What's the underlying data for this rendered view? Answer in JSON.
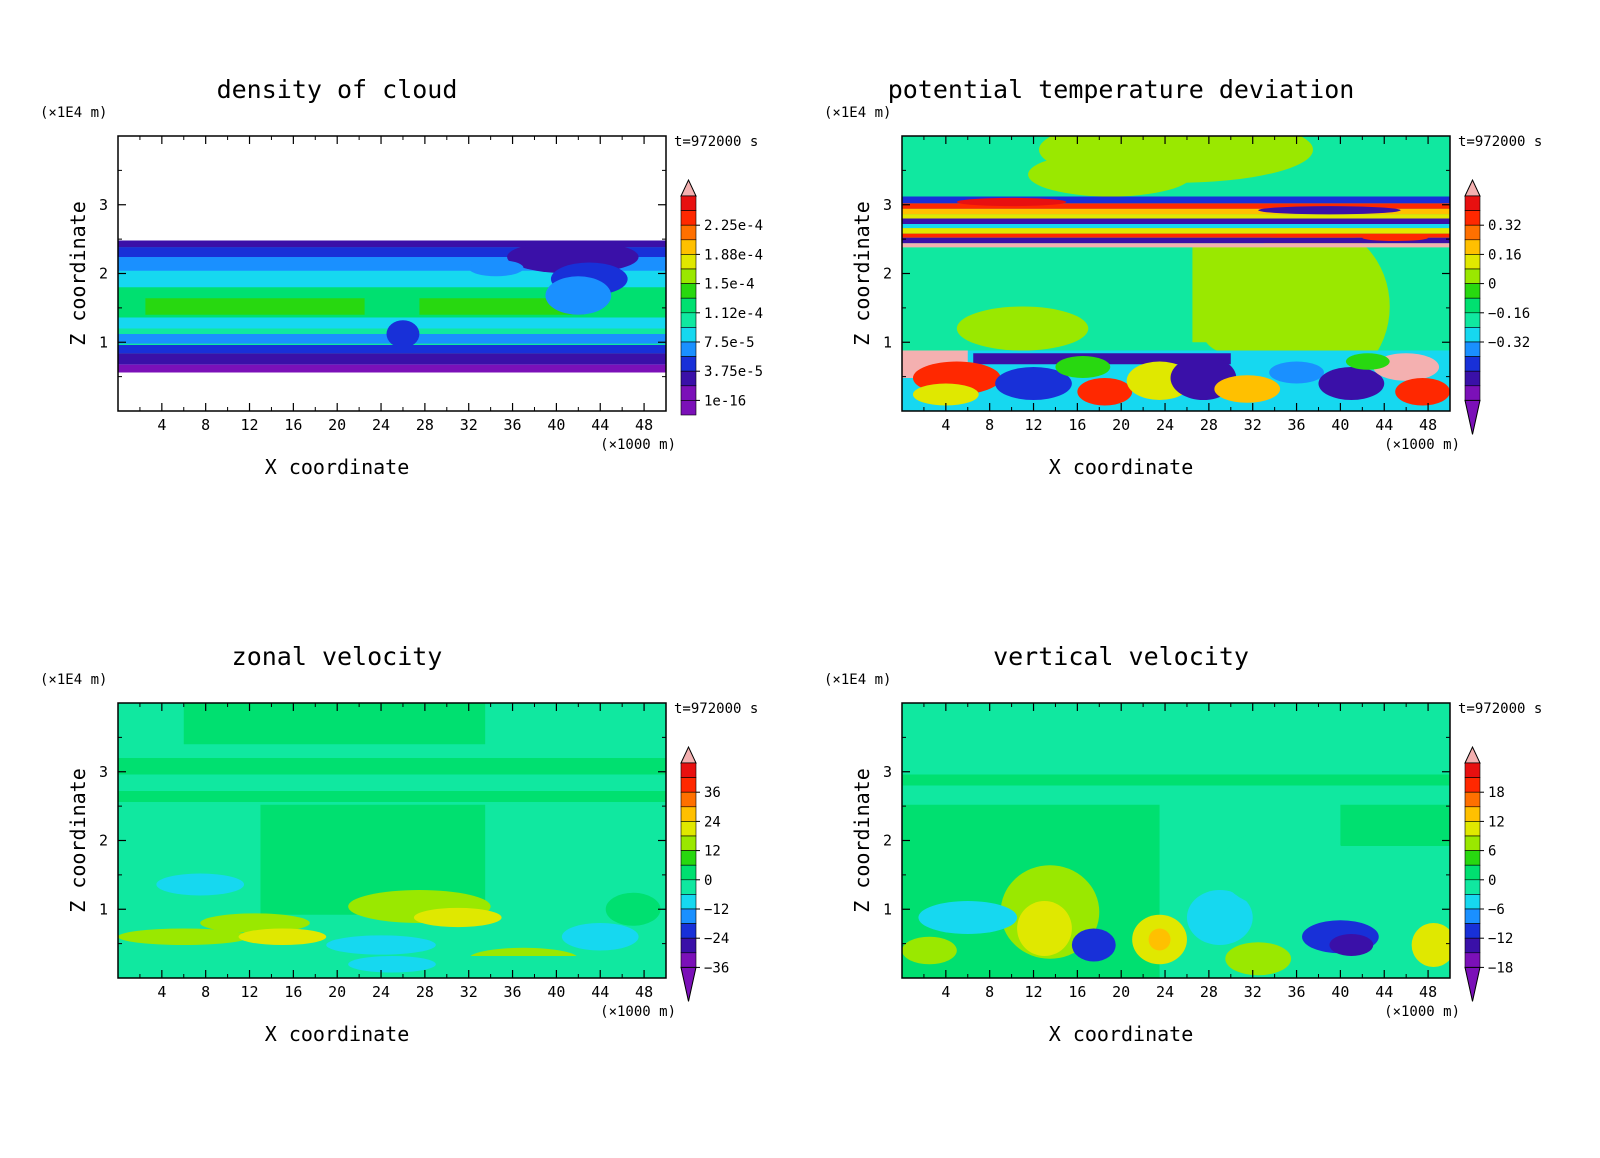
{
  "chart_data": [
    {
      "type": "heatmap",
      "title": "density of cloud",
      "xlabel": "X coordinate",
      "ylabel": "Z coordinate",
      "x_unit": "(×1000 m)",
      "y_unit": "(×1E4 m)",
      "time_label": "t=972000 s",
      "x_ticks": [
        4,
        8,
        12,
        16,
        20,
        24,
        28,
        32,
        36,
        40,
        44,
        48
      ],
      "y_ticks": [
        1,
        2,
        3
      ],
      "xlim": [
        0,
        50
      ],
      "ylim": [
        0,
        4
      ],
      "colorbar_labels": [
        "2.25e-4",
        "1.88e-4",
        "1.5e-4",
        "1.12e-4",
        "7.5e-5",
        "3.75e-5",
        "1e-16"
      ],
      "colorbar_arrows": {
        "top": true,
        "bottom": false
      },
      "field": "cloud"
    },
    {
      "type": "heatmap",
      "title": "potential temperature deviation",
      "xlabel": "X coordinate",
      "ylabel": "Z coordinate",
      "x_unit": "(×1000 m)",
      "y_unit": "(×1E4 m)",
      "time_label": "t=972000 s",
      "x_ticks": [
        4,
        8,
        12,
        16,
        20,
        24,
        28,
        32,
        36,
        40,
        44,
        48
      ],
      "y_ticks": [
        1,
        2,
        3
      ],
      "xlim": [
        0,
        50
      ],
      "ylim": [
        0,
        4
      ],
      "colorbar_labels": [
        "0.32",
        "0.16",
        "0",
        "−0.16",
        "−0.32"
      ],
      "colorbar_arrows": {
        "top": true,
        "bottom": true
      },
      "field": "theta"
    },
    {
      "type": "heatmap",
      "title": "zonal velocity",
      "xlabel": "X coordinate",
      "ylabel": "Z coordinate",
      "x_unit": "(×1000 m)",
      "y_unit": "(×1E4 m)",
      "time_label": "t=972000 s",
      "x_ticks": [
        4,
        8,
        12,
        16,
        20,
        24,
        28,
        32,
        36,
        40,
        44,
        48
      ],
      "y_ticks": [
        1,
        2,
        3
      ],
      "xlim": [
        0,
        50
      ],
      "ylim": [
        0,
        4
      ],
      "colorbar_labels": [
        "36",
        "24",
        "12",
        "0",
        "−12",
        "−24",
        "−36"
      ],
      "colorbar_arrows": {
        "top": true,
        "bottom": true
      },
      "field": "uwind"
    },
    {
      "type": "heatmap",
      "title": "vertical velocity",
      "xlabel": "X coordinate",
      "ylabel": "Z coordinate",
      "x_unit": "(×1000 m)",
      "y_unit": "(×1E4 m)",
      "time_label": "t=972000 s",
      "x_ticks": [
        4,
        8,
        12,
        16,
        20,
        24,
        28,
        32,
        36,
        40,
        44,
        48
      ],
      "y_ticks": [
        1,
        2,
        3
      ],
      "xlim": [
        0,
        50
      ],
      "ylim": [
        0,
        4
      ],
      "colorbar_labels": [
        "18",
        "12",
        "6",
        "0",
        "−6",
        "−12",
        "−18"
      ],
      "colorbar_arrows": {
        "top": true,
        "bottom": true
      },
      "field": "wwind"
    }
  ],
  "colors": {
    "palette": [
      "#7b10b8",
      "#3a10a8",
      "#1830d8",
      "#1a90ff",
      "#16d8f0",
      "#10e8a0",
      "#00e070",
      "#28d810",
      "#9ae800",
      "#e0e800",
      "#ffc000",
      "#ff7000",
      "#ff2800",
      "#e81010",
      "#f4b0b0"
    ]
  }
}
